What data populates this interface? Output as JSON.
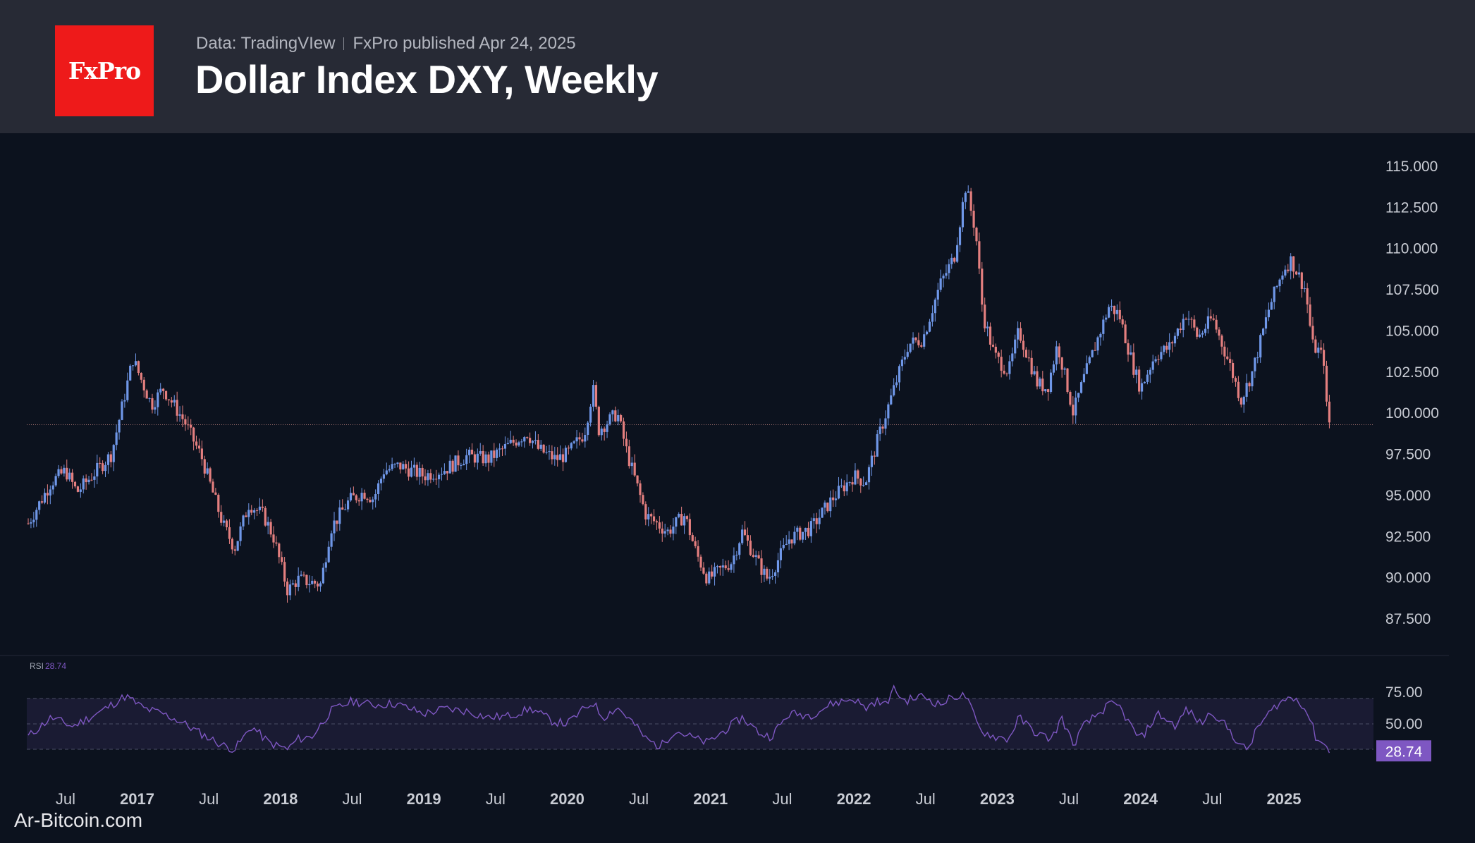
{
  "header": {
    "logo_text": "FxPro",
    "data_source": "Data: TradingVIew",
    "publisher": "FxPro published Apr 24, 2025",
    "title": "Dollar Index DXY, Weekly"
  },
  "watermark": "Ar-Bitcoin.com",
  "colors": {
    "background": "#0c121e",
    "header": "#272a35",
    "logo": "#ee1a1a",
    "up_candle": "#6f97e8",
    "down_candle": "#e47f7f",
    "rsi_line": "#7e57c2",
    "rsi_band": "#1a1b33",
    "rsi_badge": "#7e57c2"
  },
  "chart_data": [
    {
      "type": "candlestick",
      "name": "Dollar Index DXY, Weekly",
      "ylim": [
        86,
        115.5
      ],
      "yticks": [
        "87.500",
        "90.000",
        "92.500",
        "95.000",
        "97.500",
        "100.000",
        "102.500",
        "105.000",
        "107.500",
        "110.000",
        "112.500",
        "115.000"
      ],
      "reference_line": 99.3,
      "x_labels": [
        "Jul",
        "2017",
        "Jul",
        "2018",
        "Jul",
        "2019",
        "Jul",
        "2020",
        "Jul",
        "2021",
        "Jul",
        "2022",
        "Jul",
        "2023",
        "Jul",
        "2024",
        "Jul",
        "2025"
      ],
      "x_label_dates": [
        2016.5,
        2017.0,
        2017.5,
        2018.0,
        2018.5,
        2019.0,
        2019.5,
        2020.0,
        2020.5,
        2021.0,
        2021.5,
        2022.0,
        2022.5,
        2023.0,
        2023.5,
        2024.0,
        2024.5,
        2025.0
      ],
      "x_range": [
        2016.23,
        2025.61
      ],
      "price_path": [
        [
          2016.24,
          93.3
        ],
        [
          2016.4,
          95.8
        ],
        [
          2016.5,
          96.5
        ],
        [
          2016.58,
          95.2
        ],
        [
          2016.82,
          97.5
        ],
        [
          2016.97,
          103.3
        ],
        [
          2017.1,
          100.5
        ],
        [
          2017.18,
          101.5
        ],
        [
          2017.33,
          99.5
        ],
        [
          2017.45,
          97.3
        ],
        [
          2017.6,
          93.2
        ],
        [
          2017.68,
          91.8
        ],
        [
          2017.78,
          94.5
        ],
        [
          2017.88,
          93.8
        ],
        [
          2017.95,
          92.5
        ],
        [
          2018.05,
          89.2
        ],
        [
          2018.12,
          89.9
        ],
        [
          2018.28,
          89.6
        ],
        [
          2018.35,
          93.0
        ],
        [
          2018.48,
          94.7
        ],
        [
          2018.58,
          95.2
        ],
        [
          2018.65,
          94.8
        ],
        [
          2018.72,
          96.5
        ],
        [
          2018.83,
          96.8
        ],
        [
          2019.0,
          96.2
        ],
        [
          2019.15,
          96.6
        ],
        [
          2019.3,
          97.4
        ],
        [
          2019.45,
          97.2
        ],
        [
          2019.55,
          97.8
        ],
        [
          2019.72,
          98.8
        ],
        [
          2019.8,
          97.8
        ],
        [
          2019.92,
          97.2
        ],
        [
          2020.0,
          97.5
        ],
        [
          2020.12,
          98.8
        ],
        [
          2020.18,
          101.5
        ],
        [
          2020.22,
          99.0
        ],
        [
          2020.35,
          100.0
        ],
        [
          2020.42,
          97.5
        ],
        [
          2020.55,
          93.8
        ],
        [
          2020.7,
          92.8
        ],
        [
          2020.82,
          93.8
        ],
        [
          2020.9,
          91.5
        ],
        [
          2020.98,
          89.9
        ],
        [
          2021.15,
          91.0
        ],
        [
          2021.22,
          92.8
        ],
        [
          2021.35,
          90.6
        ],
        [
          2021.4,
          89.9
        ],
        [
          2021.55,
          92.4
        ],
        [
          2021.7,
          93.0
        ],
        [
          2021.85,
          94.8
        ],
        [
          2022.0,
          96.2
        ],
        [
          2022.08,
          95.8
        ],
        [
          2022.18,
          98.8
        ],
        [
          2022.38,
          104.2
        ],
        [
          2022.48,
          104.5
        ],
        [
          2022.6,
          107.8
        ],
        [
          2022.7,
          109.5
        ],
        [
          2022.78,
          113.8
        ],
        [
          2022.85,
          111.0
        ],
        [
          2022.9,
          106.0
        ],
        [
          2022.98,
          103.5
        ],
        [
          2023.08,
          102.5
        ],
        [
          2023.15,
          105.0
        ],
        [
          2023.28,
          101.8
        ],
        [
          2023.35,
          101.5
        ],
        [
          2023.42,
          104.2
        ],
        [
          2023.5,
          101.2
        ],
        [
          2023.53,
          100.0
        ],
        [
          2023.6,
          102.0
        ],
        [
          2023.78,
          106.5
        ],
        [
          2023.85,
          106.0
        ],
        [
          2023.95,
          102.8
        ],
        [
          2024.0,
          101.5
        ],
        [
          2024.1,
          103.5
        ],
        [
          2024.2,
          104.0
        ],
        [
          2024.32,
          106.1
        ],
        [
          2024.4,
          104.6
        ],
        [
          2024.5,
          105.8
        ],
        [
          2024.62,
          103.0
        ],
        [
          2024.7,
          100.8
        ],
        [
          2024.78,
          102.5
        ],
        [
          2024.9,
          106.5
        ],
        [
          2025.0,
          108.8
        ],
        [
          2025.05,
          109.3
        ],
        [
          2025.15,
          107.5
        ],
        [
          2025.2,
          104.1
        ],
        [
          2025.24,
          103.8
        ],
        [
          2025.28,
          103.2
        ],
        [
          2025.3,
          100.0
        ],
        [
          2025.32,
          99.3
        ]
      ]
    },
    {
      "type": "line",
      "name": "RSI",
      "label": "RSI",
      "current_value": "28.74",
      "band": [
        30,
        70
      ],
      "yticks": [
        "75.00",
        "50.00"
      ],
      "rsi_path": [
        [
          2016.24,
          40
        ],
        [
          2016.4,
          55
        ],
        [
          2016.55,
          48
        ],
        [
          2016.75,
          60
        ],
        [
          2016.92,
          72
        ],
        [
          2017.05,
          62
        ],
        [
          2017.18,
          58
        ],
        [
          2017.3,
          52
        ],
        [
          2017.45,
          42
        ],
        [
          2017.6,
          33
        ],
        [
          2017.68,
          30
        ],
        [
          2017.8,
          48
        ],
        [
          2017.92,
          35
        ],
        [
          2018.05,
          30
        ],
        [
          2018.12,
          38
        ],
        [
          2018.22,
          40
        ],
        [
          2018.35,
          60
        ],
        [
          2018.5,
          68
        ],
        [
          2018.65,
          65
        ],
        [
          2018.8,
          66
        ],
        [
          2019.0,
          58
        ],
        [
          2019.15,
          62
        ],
        [
          2019.3,
          60
        ],
        [
          2019.45,
          55
        ],
        [
          2019.58,
          56
        ],
        [
          2019.75,
          62
        ],
        [
          2019.9,
          52
        ],
        [
          2020.0,
          50
        ],
        [
          2020.12,
          62
        ],
        [
          2020.18,
          67
        ],
        [
          2020.25,
          55
        ],
        [
          2020.35,
          63
        ],
        [
          2020.45,
          52
        ],
        [
          2020.55,
          38
        ],
        [
          2020.65,
          32
        ],
        [
          2020.75,
          45
        ],
        [
          2020.9,
          38
        ],
        [
          2020.98,
          35
        ],
        [
          2021.1,
          45
        ],
        [
          2021.22,
          55
        ],
        [
          2021.35,
          42
        ],
        [
          2021.42,
          40
        ],
        [
          2021.55,
          58
        ],
        [
          2021.7,
          57
        ],
        [
          2021.85,
          66
        ],
        [
          2022.0,
          70
        ],
        [
          2022.08,
          62
        ],
        [
          2022.15,
          68
        ],
        [
          2022.22,
          65
        ],
        [
          2022.28,
          78
        ],
        [
          2022.35,
          68
        ],
        [
          2022.48,
          72
        ],
        [
          2022.6,
          65
        ],
        [
          2022.7,
          72
        ],
        [
          2022.78,
          72
        ],
        [
          2022.88,
          45
        ],
        [
          2022.98,
          40
        ],
        [
          2023.08,
          38
        ],
        [
          2023.15,
          55
        ],
        [
          2023.28,
          42
        ],
        [
          2023.38,
          38
        ],
        [
          2023.45,
          55
        ],
        [
          2023.53,
          33
        ],
        [
          2023.6,
          48
        ],
        [
          2023.78,
          65
        ],
        [
          2023.85,
          64
        ],
        [
          2023.95,
          45
        ],
        [
          2024.0,
          38
        ],
        [
          2024.12,
          58
        ],
        [
          2024.25,
          48
        ],
        [
          2024.32,
          62
        ],
        [
          2024.42,
          50
        ],
        [
          2024.5,
          60
        ],
        [
          2024.62,
          45
        ],
        [
          2024.7,
          32
        ],
        [
          2024.75,
          30
        ],
        [
          2024.82,
          48
        ],
        [
          2024.95,
          65
        ],
        [
          2025.02,
          70
        ],
        [
          2025.1,
          70
        ],
        [
          2025.18,
          55
        ],
        [
          2025.22,
          40
        ],
        [
          2025.27,
          35
        ],
        [
          2025.32,
          28.74
        ]
      ]
    }
  ]
}
